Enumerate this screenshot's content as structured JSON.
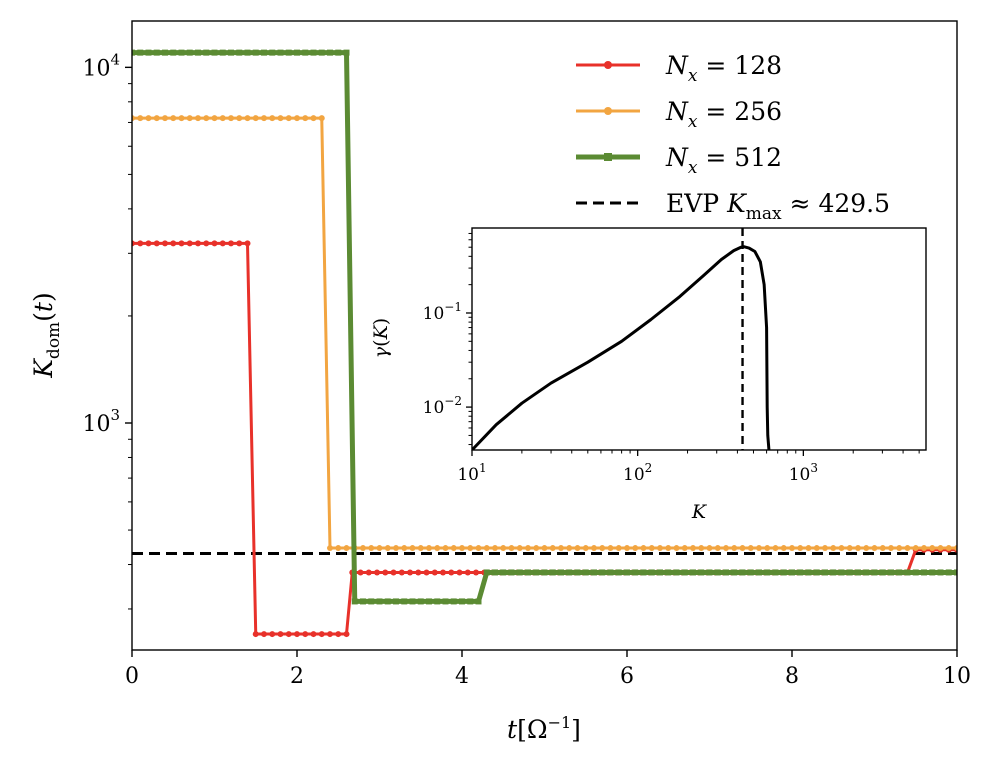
{
  "chart_data": [
    {
      "type": "line",
      "id": "main",
      "xlabel": "t[Ω⁻¹]",
      "ylabel": "K_dom(t)",
      "xlim": [
        0,
        10
      ],
      "ylim": [
        230,
        13500
      ],
      "yscale": "log",
      "xticks": [
        0,
        2,
        4,
        6,
        8,
        10
      ],
      "xtick_labels": [
        "0",
        "2",
        "4",
        "6",
        "8",
        "10"
      ],
      "yticks": [
        1000,
        10000
      ],
      "ytick_labels": [
        "10³",
        "10⁴"
      ],
      "legend_position": "top-right",
      "colors": {
        "nx128": "#e8312a",
        "nx256": "#f2a541",
        "nx512": "#5b8b33",
        "evp": "#000000"
      },
      "series": [
        {
          "name": "N_x = 128",
          "label_lhs": "N",
          "label_sub": "x",
          "label_rhs": "= 128",
          "marker": "circle",
          "color_key": "nx128",
          "x": [
            0,
            1.4,
            1.5,
            2.6,
            2.67,
            9.4,
            9.5,
            10
          ],
          "y": [
            3200,
            3200,
            255,
            255,
            380,
            380,
            440,
            440
          ]
        },
        {
          "name": "N_x = 256",
          "label_lhs": "N",
          "label_sub": "x",
          "label_rhs": "= 256",
          "marker": "circle",
          "color_key": "nx256",
          "x": [
            0,
            2.3,
            2.4,
            10
          ],
          "y": [
            7200,
            7200,
            445,
            445
          ]
        },
        {
          "name": "N_x = 512",
          "label_lhs": "N",
          "label_sub": "x",
          "label_rhs": "= 512",
          "marker": "square",
          "color_key": "nx512",
          "x": [
            0,
            2.6,
            2.7,
            4.2,
            4.3,
            10
          ],
          "y": [
            11000,
            11000,
            315,
            315,
            380,
            380
          ]
        }
      ],
      "reference_line": {
        "name": "EVP K_max ≈ 429.5",
        "label_prefix": "EVP ",
        "label_var": "K",
        "label_sub": "max",
        "label_suffix": " ≈ 429.5",
        "y": 429.5,
        "style": "dashed"
      }
    },
    {
      "type": "line",
      "id": "inset",
      "xlabel": "K",
      "ylabel": "γ(K)",
      "xscale": "log",
      "yscale": "log",
      "xlim": [
        10,
        5500
      ],
      "ylim": [
        0.0035,
        0.8
      ],
      "xticks": [
        10,
        100,
        1000
      ],
      "xtick_labels": [
        "10¹",
        "10²",
        "10³"
      ],
      "yticks": [
        0.01,
        0.1
      ],
      "ytick_labels": [
        "10⁻²",
        "10⁻¹"
      ],
      "series": [
        {
          "name": "γ(K)",
          "x": [
            10,
            14,
            20,
            30,
            50,
            80,
            120,
            180,
            250,
            320,
            380,
            420,
            440,
            470,
            510,
            550,
            580,
            600,
            605,
            610,
            620
          ],
          "y": [
            0.0035,
            0.0065,
            0.011,
            0.018,
            0.03,
            0.05,
            0.085,
            0.15,
            0.25,
            0.37,
            0.46,
            0.5,
            0.505,
            0.49,
            0.45,
            0.35,
            0.2,
            0.07,
            0.01,
            0.005,
            0.0035
          ]
        }
      ],
      "reference_line": {
        "x": 429.5,
        "style": "dashed"
      }
    }
  ]
}
